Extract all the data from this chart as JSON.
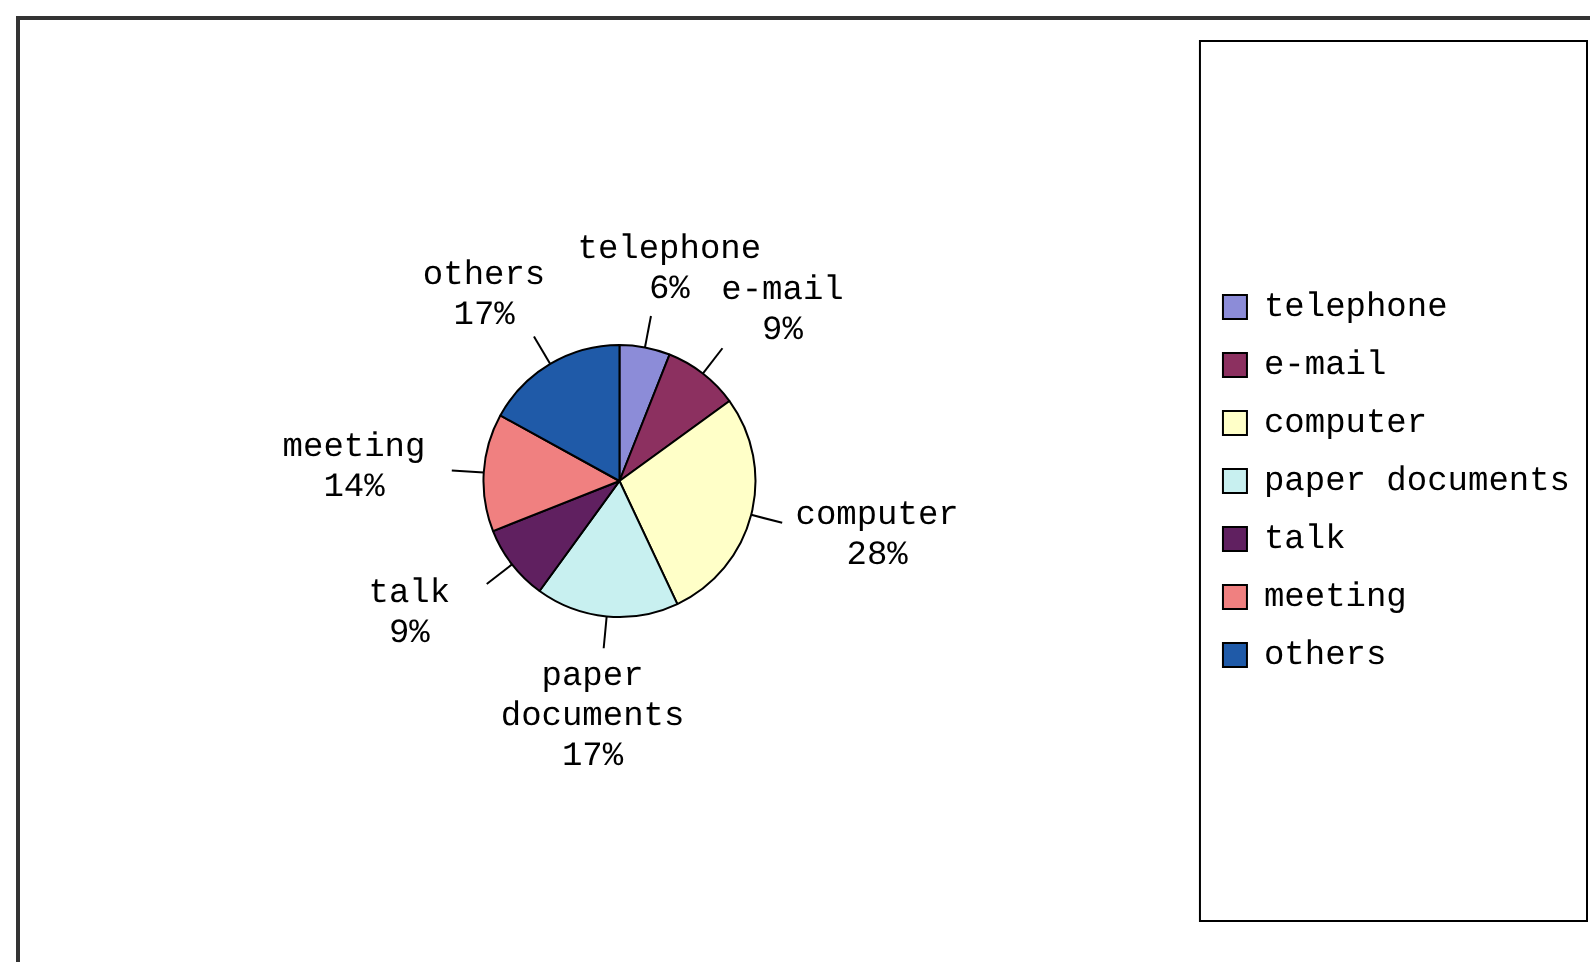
{
  "chart_data": {
    "type": "pie",
    "categories": [
      "telephone",
      "e-mail",
      "computer",
      "paper documents",
      "talk",
      "meeting",
      "others"
    ],
    "values": [
      6,
      9,
      28,
      17,
      9,
      14,
      17
    ],
    "colors": [
      "#8c8cd8",
      "#8c3060",
      "#ffffc8",
      "#c8f0f0",
      "#602060",
      "#f08080",
      "#1f5aa8"
    ],
    "value_labels": [
      "6%",
      "9%",
      "28%",
      "17%",
      "9%",
      "14%",
      "17%"
    ],
    "legend": "right"
  }
}
